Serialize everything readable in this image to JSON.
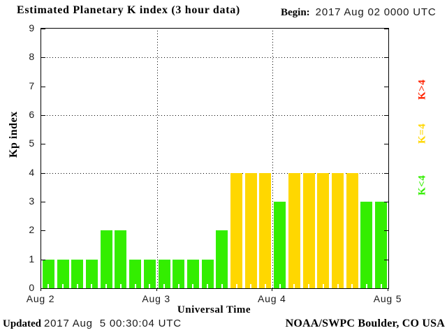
{
  "header": {
    "title": "Estimated Planetary K index (3 hour data)",
    "begin_label": "Begin:",
    "begin_value": "2017 Aug 02 0000 UTC"
  },
  "chart_data": {
    "type": "bar",
    "title": "Estimated Planetary K index (3 hour data)",
    "xlabel": "Universal Time",
    "ylabel": "Kp index",
    "ylim": [
      0,
      9
    ],
    "y_ticks": [
      0,
      1,
      2,
      3,
      4,
      5,
      6,
      7,
      8,
      9
    ],
    "x_tick_labels": [
      "Aug 2",
      "Aug 3",
      "Aug 4",
      "Aug 5"
    ],
    "grid_y": [
      4,
      6,
      8
    ],
    "grid_x_day_boundaries": [
      "Aug 3",
      "Aug 4"
    ],
    "interval_hours": 3,
    "bars_per_day": 8,
    "begin": "2017 Aug 02 0000 UTC",
    "series": [
      {
        "day": "Aug 2",
        "values": [
          1,
          1,
          1,
          1,
          2,
          2,
          1,
          1
        ]
      },
      {
        "day": "Aug 3",
        "values": [
          1,
          1,
          1,
          1,
          2,
          4,
          4,
          4
        ]
      },
      {
        "day": "Aug 4",
        "values": [
          3,
          4,
          4,
          4,
          4,
          4,
          3,
          3
        ]
      }
    ],
    "values": [
      1,
      1,
      1,
      1,
      2,
      2,
      1,
      1,
      1,
      1,
      1,
      1,
      2,
      4,
      4,
      4,
      3,
      4,
      4,
      4,
      4,
      4,
      3,
      3
    ],
    "colors": {
      "k_below_4": "#33ee00",
      "k_equal_4": "#ffd700",
      "k_above_4": "#ff2200",
      "axis": "#000000",
      "background": "#ffffff"
    },
    "legend": [
      {
        "label": "K>4",
        "color": "#ff2200"
      },
      {
        "label": "K=4",
        "color": "#ffd700"
      },
      {
        "label": "K<4",
        "color": "#33ee00"
      }
    ],
    "legend_position": "right"
  },
  "footer": {
    "updated_label": "Updated",
    "updated_value": "2017 Aug  5 00:30:04 UTC",
    "credit": "NOAA/SWPC Boulder, CO USA"
  }
}
